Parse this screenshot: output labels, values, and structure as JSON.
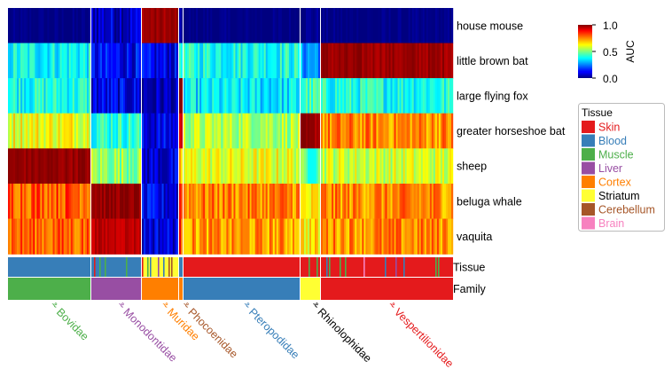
{
  "chart_data": {
    "type": "heatmap",
    "rows": [
      "house mouse",
      "little brown bat",
      "large flying fox",
      "greater horseshoe bat",
      "sheep",
      "beluga whale",
      "vaquita"
    ],
    "column_groups": [
      {
        "family": "Bovidae",
        "family_color": "#4daf4a",
        "label_color": "#4daf4a",
        "tissue_mix": [
          "Blood"
        ]
      },
      {
        "family": "Monodontidae",
        "family_color": "#984ea3",
        "label_color": "#984ea3",
        "tissue_mix": [
          "Blood",
          "Skin",
          "Muscle"
        ]
      },
      {
        "family": "Muridae",
        "family_color": "#ff7f00",
        "label_color": "#ff7f00",
        "tissue_mix": [
          "Striatum",
          "Cortex",
          "Muscle",
          "Blood",
          "Liver",
          "Cerebellum",
          "Brain",
          "Skin"
        ]
      },
      {
        "family": "Phocoenidae",
        "family_color": "#ff7f00",
        "label_color": "#a65628",
        "tissue_mix": [
          "Blood",
          "Skin",
          "Muscle"
        ]
      },
      {
        "family": "Pteropodidae",
        "family_color": "#377eb8",
        "label_color": "#377eb8",
        "tissue_mix": [
          "Skin"
        ]
      },
      {
        "family": "Rhinolophidae",
        "family_color": "#ffff33",
        "label_color": "#000000",
        "tissue_mix": [
          "Skin",
          "Muscle"
        ]
      },
      {
        "family": "Vespertilionidae",
        "family_color": "#e41a1c",
        "label_color": "#e41a1c",
        "tissue_mix": [
          "Skin",
          "Muscle",
          "Blood",
          "Liver",
          "Brain"
        ]
      }
    ],
    "values": [
      [
        0.0,
        0.08,
        0.97,
        0.03,
        0.0,
        0.02,
        0.0
      ],
      [
        0.38,
        0.12,
        0.1,
        0.45,
        0.4,
        0.28,
        0.97
      ],
      [
        0.4,
        0.1,
        0.05,
        0.97,
        0.35,
        0.43,
        0.4
      ],
      [
        0.62,
        0.42,
        0.1,
        0.92,
        0.55,
        0.97,
        0.74
      ],
      [
        0.98,
        0.52,
        0.08,
        0.66,
        0.6,
        0.46,
        0.58
      ],
      [
        0.8,
        0.98,
        0.1,
        0.83,
        0.75,
        0.62,
        0.74
      ],
      [
        0.78,
        0.94,
        0.1,
        0.82,
        0.72,
        0.64,
        0.74
      ]
    ],
    "annotation_rows": [
      "Tissue",
      "Family"
    ],
    "colorbar": {
      "label": "AUC",
      "min": 0.0,
      "max": 1.0,
      "ticks": [
        "0.0",
        "0.5",
        "1.0"
      ],
      "colormap": "jet"
    },
    "legend": {
      "title": "Tissue",
      "placement": "right",
      "items": [
        {
          "name": "Skin",
          "color": "#e41a1c"
        },
        {
          "name": "Blood",
          "color": "#377eb8"
        },
        {
          "name": "Muscle",
          "color": "#4daf4a"
        },
        {
          "name": "Liver",
          "color": "#984ea3"
        },
        {
          "name": "Cortex",
          "color": "#ff7f00"
        },
        {
          "name": "Striatum",
          "color": "#ffff33"
        },
        {
          "name": "Cerebellum",
          "color": "#a65628"
        },
        {
          "name": "Brain",
          "color": "#f781bf"
        }
      ]
    },
    "title": "",
    "xlabel": "",
    "ylabel": ""
  }
}
